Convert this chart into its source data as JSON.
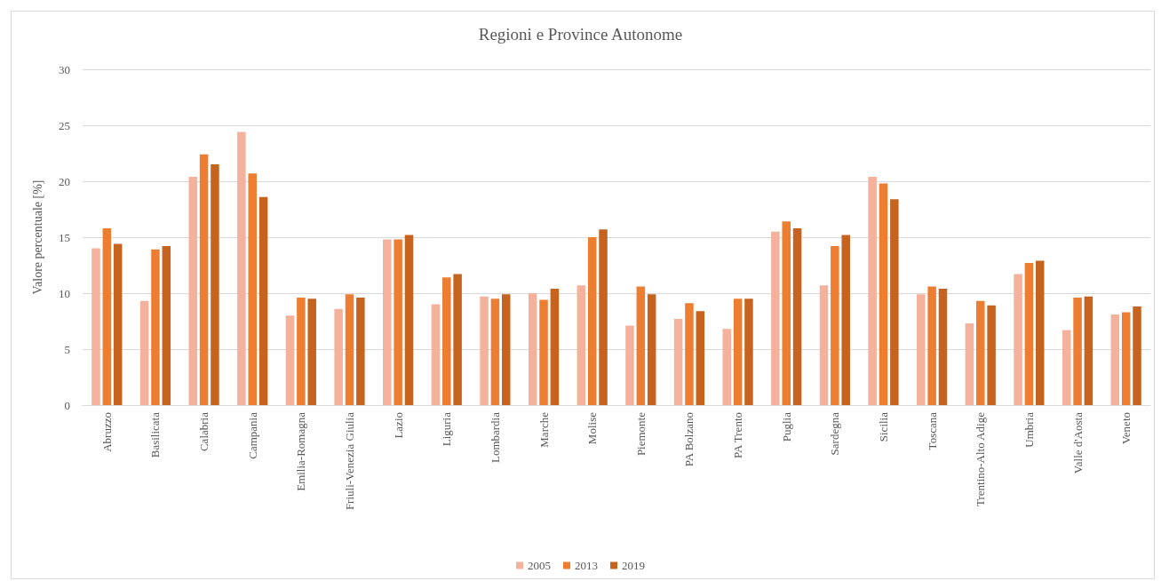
{
  "chart_data": {
    "type": "bar",
    "title": "Regioni e Province Autonome",
    "ylabel": "Valore percentuale [%]",
    "categories": [
      "Abruzzo",
      "Basilicata",
      "Calabria",
      "Campania",
      "Emilia-Romagna",
      "Friuli-Venezia Giulia",
      "Lazio",
      "Liguria",
      "Lombardia",
      "Marche",
      "Molise",
      "Piemonte",
      "PA Bolzano",
      "PA Trento",
      "Puglia",
      "Sardegna",
      "Sicilia",
      "Toscana",
      "Trentino-Alto Adige",
      "Umbria",
      "Valle d'Aosta",
      "Veneto"
    ],
    "series": [
      {
        "name": "2005",
        "color": "#f4b19b",
        "values": [
          14.0,
          9.3,
          20.4,
          24.4,
          8.0,
          8.6,
          14.8,
          9.0,
          9.7,
          10.0,
          10.7,
          7.1,
          7.7,
          6.8,
          15.5,
          10.7,
          20.4,
          9.9,
          7.3,
          11.7,
          6.7,
          8.1
        ]
      },
      {
        "name": "2013",
        "color": "#ed7d31",
        "values": [
          15.8,
          13.9,
          22.4,
          20.7,
          9.6,
          9.9,
          14.8,
          11.4,
          9.5,
          9.4,
          15.0,
          10.6,
          9.1,
          9.5,
          16.4,
          14.2,
          19.8,
          10.6,
          9.3,
          12.7,
          9.6,
          8.3
        ]
      },
      {
        "name": "2019",
        "color": "#c5631f",
        "values": [
          14.4,
          14.2,
          21.5,
          18.6,
          9.5,
          9.6,
          15.2,
          11.7,
          9.9,
          10.4,
          15.7,
          9.9,
          8.4,
          9.5,
          15.8,
          15.2,
          18.4,
          10.4,
          8.9,
          12.9,
          9.7,
          8.8
        ]
      }
    ],
    "ylim": [
      0,
      30
    ],
    "yticks": [
      0,
      5,
      10,
      15,
      20,
      25,
      30
    ],
    "grid": "y",
    "legend": "bottom"
  }
}
